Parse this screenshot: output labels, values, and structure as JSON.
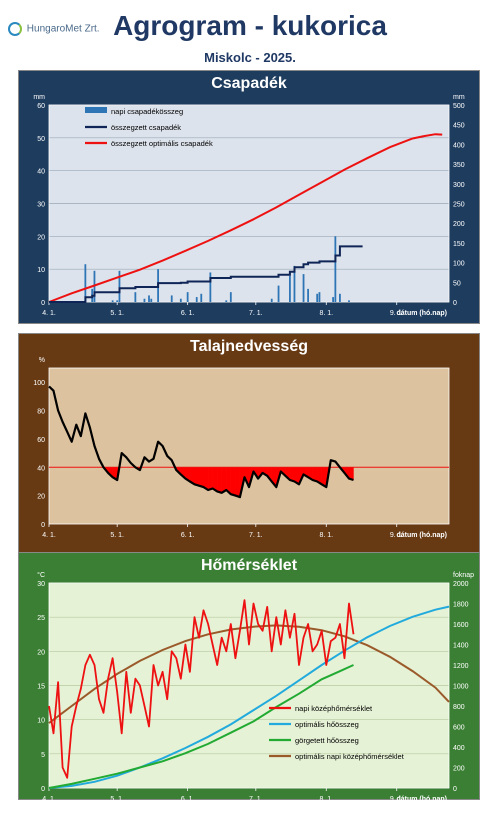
{
  "header": {
    "logo_text": "HungaroMet Zrt.",
    "title": "Agrogram - kukorica",
    "subtitle": "Miskolc - 2025."
  },
  "colors": {
    "precip_panel": "#1e3c5e",
    "soil_panel": "#673a14",
    "temp_panel": "#3b7f34",
    "daily_precip": "#2e75b6",
    "cum_precip": "#0f2557",
    "optimal_precip": "#ee1111",
    "soil_line": "#000000",
    "soil_fill": "#ff0000",
    "soil_threshold": "#ee1111",
    "daily_temp": "#ee1111",
    "optimal_heat": "#22aadd",
    "cum_heat": "#22aa33",
    "optimal_daily_temp": "#9a5a2a"
  },
  "chart_data": [
    {
      "type": "bar",
      "title": "Csapadék",
      "ylabel": "mm",
      "y2label": "mm",
      "xlabel": "dátum (hó.nap)",
      "ylim": [
        0,
        60
      ],
      "y2lim": [
        0,
        500
      ],
      "yticks": [
        0,
        10,
        20,
        30,
        40,
        50,
        60
      ],
      "y2ticks": [
        0,
        50,
        100,
        150,
        200,
        250,
        300,
        350,
        400,
        450,
        500
      ],
      "x_ticks": [
        "4. 1.",
        "5. 1.",
        "6. 1.",
        "7. 1.",
        "8. 1.",
        "9. 1."
      ],
      "x_tick_days": [
        0,
        30,
        61,
        91,
        122,
        153
      ],
      "xlim_days": [
        0,
        176
      ],
      "grid": true,
      "legend_position": "top-left",
      "series": [
        {
          "name": "napi csapadékösszeg",
          "kind": "bar",
          "axis": "left",
          "days": [
            16,
            19,
            20,
            28,
            30,
            31,
            38,
            42,
            44,
            45,
            48,
            54,
            58,
            61,
            65,
            67,
            71,
            78,
            80,
            98,
            101,
            106,
            108,
            112,
            114,
            118,
            119,
            125,
            126,
            128,
            132
          ],
          "values": [
            11.5,
            4,
            9.5,
            0.5,
            0.5,
            9.5,
            3,
            1,
            2,
            1,
            10,
            2,
            1,
            3,
            1.5,
            2.5,
            9,
            0.5,
            3,
            1,
            5,
            8,
            11,
            8.5,
            4,
            2.5,
            3,
            1.5,
            20,
            2.5,
            0.5
          ]
        },
        {
          "name": "összegzett csapadék",
          "kind": "step",
          "axis": "right",
          "days": [
            0,
            16,
            19,
            20,
            31,
            38,
            48,
            58,
            61,
            71,
            80,
            101,
            106,
            108,
            112,
            114,
            119,
            126,
            128,
            138
          ],
          "values": [
            0,
            12,
            16,
            25,
            35,
            38,
            48,
            49,
            52,
            61,
            64,
            69,
            77,
            88,
            96,
            100,
            103,
            118,
            141,
            141
          ]
        },
        {
          "name": "összegzett optimális csapadék",
          "kind": "line",
          "axis": "right",
          "days": [
            0,
            10,
            20,
            30,
            40,
            50,
            60,
            70,
            80,
            90,
            100,
            110,
            120,
            130,
            140,
            150,
            160,
            165,
            170,
            173
          ],
          "values": [
            0,
            22,
            42,
            62,
            82,
            105,
            130,
            155,
            182,
            210,
            240,
            272,
            304,
            336,
            365,
            393,
            415,
            421,
            426,
            425
          ]
        }
      ]
    },
    {
      "type": "area",
      "title": "Talajnedvesség",
      "ylabel": "%",
      "xlabel": "dátum (hó.nap)",
      "ylim": [
        0,
        110
      ],
      "yticks": [
        0,
        20,
        40,
        60,
        80,
        100
      ],
      "x_ticks": [
        "4. 1.",
        "5. 1.",
        "6. 1.",
        "7. 1.",
        "8. 1.",
        "9. 1."
      ],
      "x_tick_days": [
        0,
        30,
        61,
        91,
        122,
        153
      ],
      "xlim_days": [
        0,
        176
      ],
      "threshold": 40,
      "grid": false,
      "series": [
        {
          "name": "talajnedvesség",
          "kind": "line",
          "days": [
            0,
            2,
            4,
            6,
            8,
            10,
            12,
            14,
            16,
            18,
            20,
            22,
            24,
            26,
            28,
            30,
            32,
            34,
            36,
            38,
            40,
            42,
            44,
            46,
            48,
            50,
            52,
            54,
            56,
            58,
            60,
            62,
            64,
            66,
            68,
            70,
            72,
            74,
            76,
            78,
            80,
            82,
            84,
            86,
            88,
            90,
            92,
            94,
            96,
            98,
            100,
            102,
            104,
            106,
            108,
            110,
            112,
            114,
            116,
            118,
            120,
            122,
            124,
            126,
            128,
            130,
            132,
            134
          ],
          "values": [
            97,
            94,
            80,
            72,
            65,
            58,
            70,
            62,
            78,
            68,
            55,
            46,
            40,
            36,
            33,
            31,
            50,
            47,
            43,
            40,
            38,
            47,
            44,
            46,
            58,
            55,
            48,
            45,
            38,
            35,
            32,
            30,
            28,
            27,
            26,
            24,
            25,
            23,
            22,
            24,
            21,
            20,
            19,
            33,
            26,
            37,
            32,
            36,
            34,
            30,
            26,
            37,
            34,
            31,
            30,
            28,
            35,
            33,
            31,
            30,
            28,
            26,
            45,
            44,
            40,
            36,
            32,
            31
          ]
        }
      ]
    },
    {
      "type": "line",
      "title": "Hőmérséklet",
      "ylabel": "°C",
      "y2label": "foknap",
      "xlabel": "dátum (hó.nap)",
      "ylim": [
        0,
        30
      ],
      "y2lim": [
        0,
        2000
      ],
      "yticks": [
        0,
        5,
        10,
        15,
        20,
        25,
        30
      ],
      "y2ticks": [
        0,
        200,
        400,
        600,
        800,
        1000,
        1200,
        1400,
        1600,
        1800,
        2000
      ],
      "x_ticks": [
        "4. 1.",
        "5. 1.",
        "6. 1.",
        "7. 1.",
        "8. 1.",
        "9. 1."
      ],
      "x_tick_days": [
        0,
        30,
        61,
        91,
        122,
        153
      ],
      "xlim_days": [
        0,
        176
      ],
      "grid": true,
      "legend_position": "bottom-right",
      "series": [
        {
          "name": "napi középhőmérséklet",
          "kind": "line",
          "axis": "left",
          "days": [
            0,
            2,
            4,
            6,
            8,
            10,
            12,
            14,
            16,
            18,
            20,
            22,
            24,
            26,
            28,
            30,
            32,
            34,
            36,
            38,
            40,
            42,
            44,
            46,
            48,
            50,
            52,
            54,
            56,
            58,
            60,
            62,
            64,
            66,
            68,
            70,
            72,
            74,
            76,
            78,
            80,
            82,
            84,
            86,
            88,
            90,
            92,
            94,
            96,
            98,
            100,
            102,
            104,
            106,
            108,
            110,
            112,
            114,
            116,
            118,
            120,
            122,
            124,
            126,
            128,
            130,
            132,
            134
          ],
          "values": [
            12,
            8,
            15.5,
            3,
            1.5,
            9,
            12,
            14.5,
            18,
            19.5,
            18,
            13,
            11,
            16,
            19,
            14,
            8,
            17,
            11,
            16,
            15,
            12,
            9,
            18,
            15,
            17,
            13,
            20,
            19,
            16,
            21,
            17,
            25,
            22,
            26,
            24,
            21,
            18,
            22,
            20,
            24,
            19,
            23,
            27.5,
            21,
            27,
            24,
            23,
            26.5,
            20,
            25,
            21,
            26,
            22,
            25.5,
            18,
            22,
            24,
            20,
            21,
            23,
            18,
            21.5,
            22,
            24,
            19,
            27,
            22.5
          ]
        },
        {
          "name": "optimális hőösszeg",
          "kind": "line",
          "axis": "right",
          "days": [
            0,
            10,
            20,
            30,
            40,
            50,
            60,
            70,
            80,
            90,
            100,
            110,
            120,
            130,
            140,
            150,
            160,
            170,
            176
          ],
          "values": [
            0,
            20,
            60,
            120,
            200,
            290,
            390,
            500,
            620,
            760,
            900,
            1050,
            1200,
            1340,
            1470,
            1580,
            1670,
            1740,
            1770
          ]
        },
        {
          "name": "görgetett hőösszeg",
          "kind": "line",
          "axis": "right",
          "days": [
            0,
            10,
            20,
            30,
            40,
            50,
            60,
            70,
            80,
            90,
            100,
            110,
            120,
            128,
            134
          ],
          "values": [
            0,
            40,
            90,
            140,
            200,
            260,
            340,
            430,
            540,
            650,
            790,
            920,
            1060,
            1140,
            1200
          ]
        },
        {
          "name": "optimális napi középhőmérséklet",
          "kind": "line",
          "axis": "left",
          "days": [
            0,
            10,
            20,
            30,
            40,
            50,
            60,
            70,
            80,
            90,
            100,
            110,
            120,
            130,
            140,
            150,
            160,
            170,
            176
          ],
          "values": [
            9.5,
            12,
            14.5,
            16.7,
            18.6,
            20.2,
            21.5,
            22.5,
            23.2,
            23.6,
            23.8,
            23.6,
            23.1,
            22.2,
            20.9,
            19.2,
            17.1,
            14.7,
            12.6
          ]
        }
      ]
    }
  ]
}
